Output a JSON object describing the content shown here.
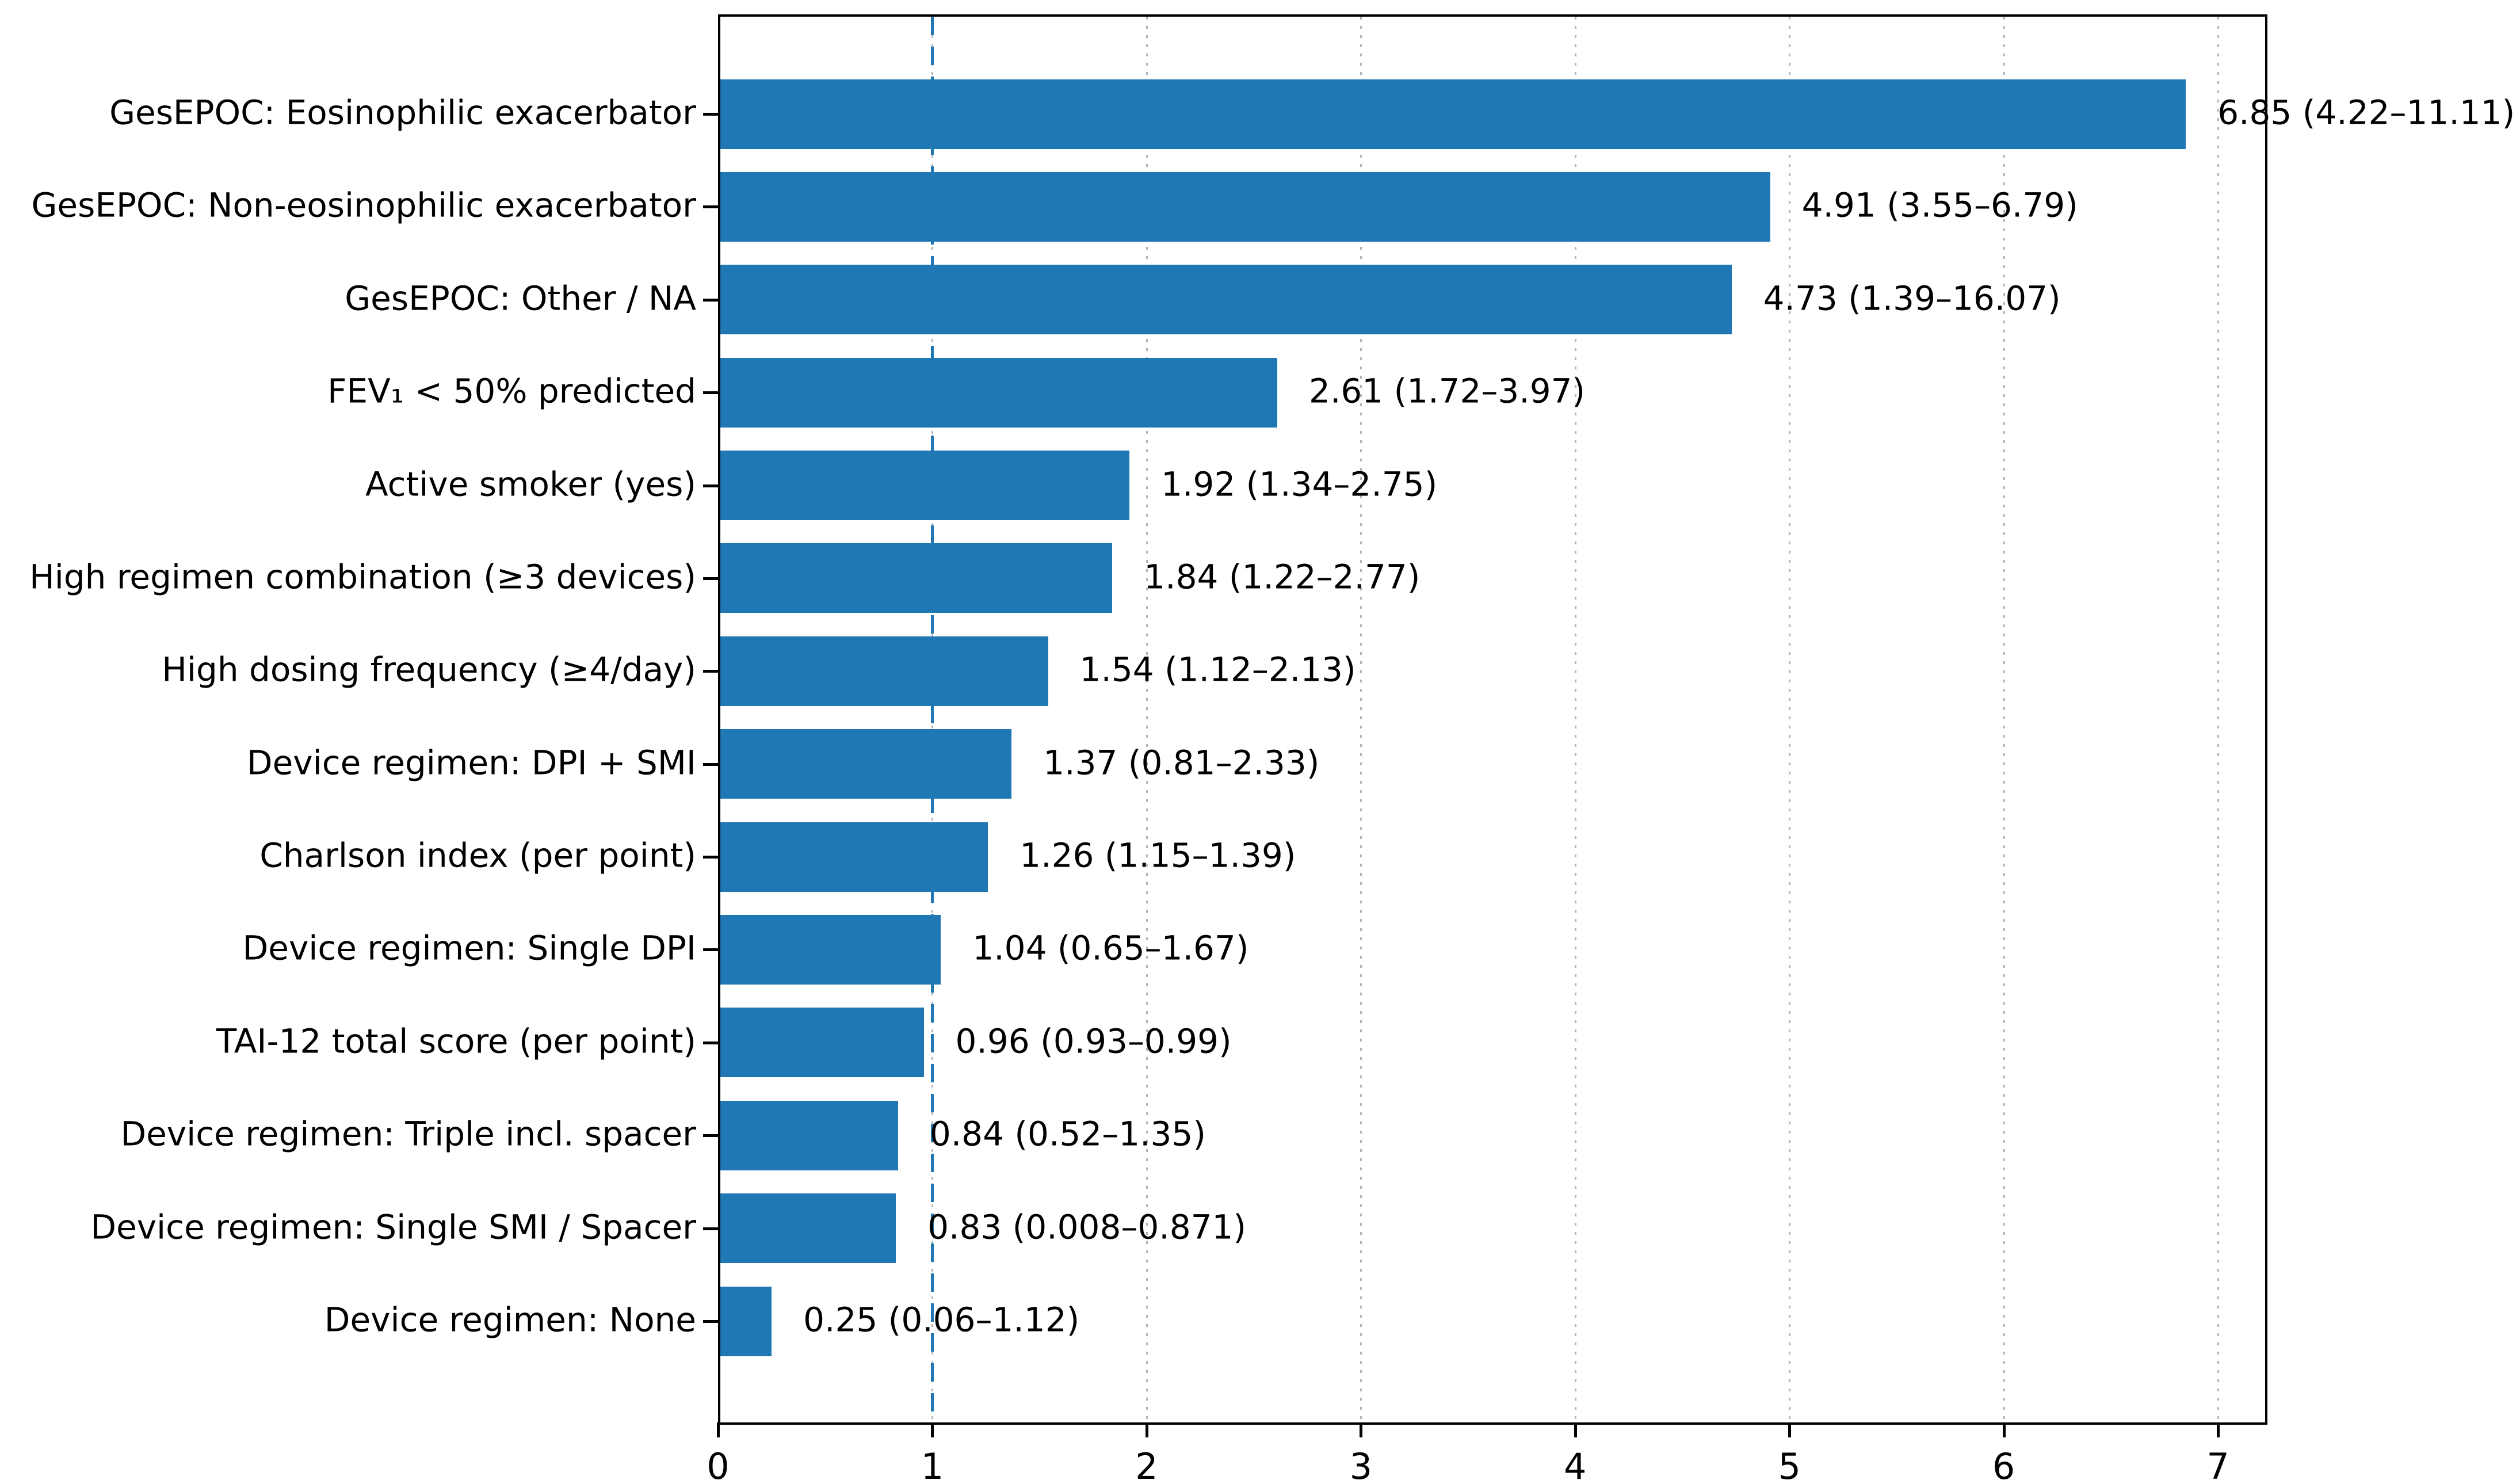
{
  "chart_data": {
    "type": "bar",
    "orientation": "horizontal",
    "title": "",
    "xlabel": "",
    "ylabel": "",
    "xlim": [
      0,
      7.22
    ],
    "xtick_labels": [
      "0",
      "1",
      "2",
      "3",
      "4",
      "5",
      "6",
      "7"
    ],
    "xtick_values": [
      0,
      1,
      2,
      3,
      4,
      5,
      6,
      7
    ],
    "grid": "vertical dotted gridlines at integer x values",
    "legend": "none",
    "reference_line_x": 1,
    "bar_color": "#1f77b4",
    "reference_line_color": "#1f77b4",
    "gridline_color": "#b4b4b4",
    "categories": [
      "GesEPOC: Eosinophilic exacerbator",
      "GesEPOC: Non-eosinophilic exacerbator",
      "GesEPOC: Other / NA",
      "FEV₁ < 50% predicted",
      "Active smoker (yes)",
      "High regimen combination (≥3 devices)",
      "High dosing frequency (≥4/day)",
      "Device regimen: DPI + SMI",
      "Charlson index (per point)",
      "Device regimen: Single DPI",
      "TAI-12 total score (per point)",
      "Device regimen: Triple incl. spacer",
      "Device regimen: Single SMI / Spacer",
      "Device regimen: None"
    ],
    "values": [
      6.85,
      4.91,
      4.73,
      2.61,
      1.92,
      1.84,
      1.54,
      1.37,
      1.26,
      1.04,
      0.96,
      0.84,
      0.83,
      0.25
    ],
    "ci_low": [
      4.22,
      3.55,
      1.39,
      1.72,
      1.34,
      1.22,
      1.12,
      0.81,
      1.15,
      0.65,
      0.93,
      0.52,
      0.008,
      0.06
    ],
    "ci_high": [
      11.11,
      6.79,
      16.07,
      3.97,
      2.75,
      2.77,
      2.13,
      2.33,
      1.39,
      1.67,
      0.99,
      1.35,
      0.871,
      1.12
    ],
    "value_labels": [
      "6.85 (4.22–11.11)",
      "4.91 (3.55–6.79)",
      "4.73 (1.39–16.07)",
      "2.61 (1.72–3.97)",
      "1.92 (1.34–2.75)",
      "1.84 (1.22–2.77)",
      "1.54 (1.12–2.13)",
      "1.37 (0.81–2.33)",
      "1.26 (1.15–1.39)",
      "1.04 (0.65–1.67)",
      "0.96 (0.93–0.99)",
      "0.84 (0.52–1.35)",
      "0.83 (0.008–0.871)",
      "0.25 (0.06–1.12)"
    ]
  }
}
